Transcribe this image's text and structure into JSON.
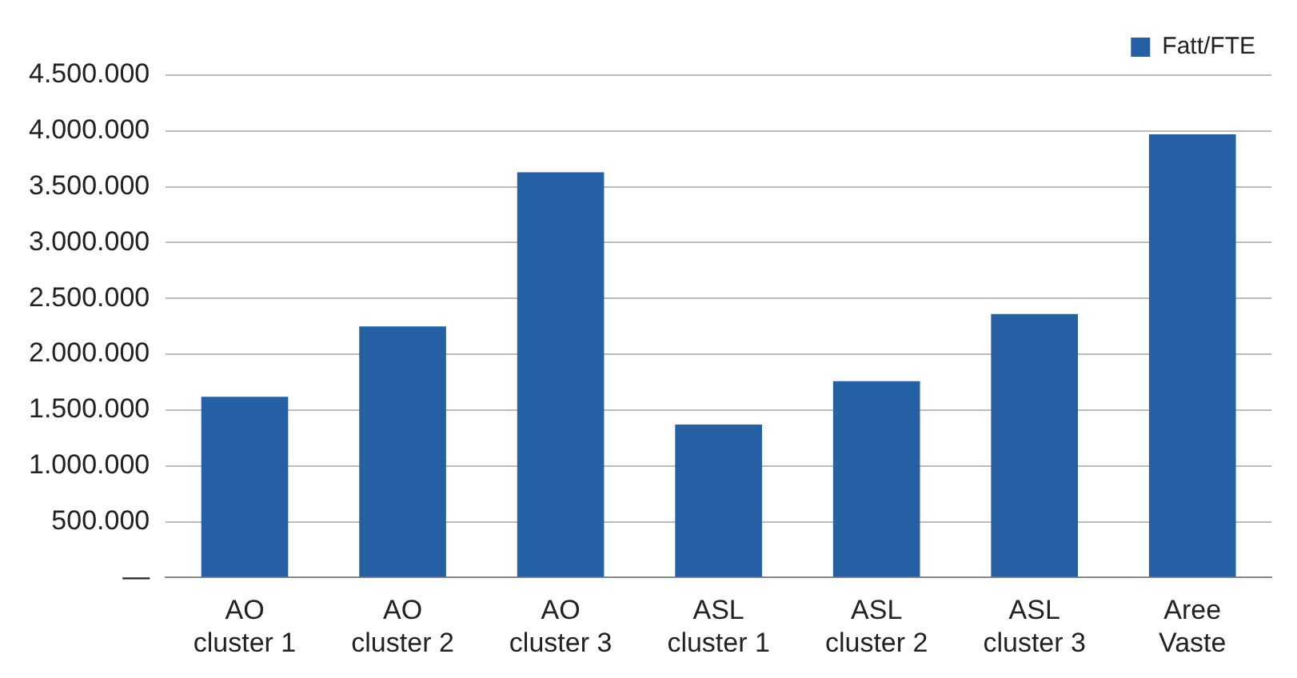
{
  "chart_data": {
    "type": "bar",
    "categories": [
      "AO cluster 1",
      "AO cluster 2",
      "AO cluster 3",
      "ASL cluster 1",
      "ASL cluster 2",
      "ASL cluster 3",
      "Aree Vaste"
    ],
    "series": [
      {
        "name": "Fatt/FTE",
        "color": "#2660a4",
        "values": [
          1620000,
          2250000,
          3630000,
          1370000,
          1760000,
          2360000,
          3970000
        ]
      }
    ],
    "ylim": [
      0,
      4500000
    ],
    "yticks": [
      {
        "value": 0,
        "label": "—"
      },
      {
        "value": 500000,
        "label": "500.000"
      },
      {
        "value": 1000000,
        "label": "1.000.000"
      },
      {
        "value": 1500000,
        "label": "1.500.000"
      },
      {
        "value": 2000000,
        "label": "2.000.000"
      },
      {
        "value": 2500000,
        "label": "2.500.000"
      },
      {
        "value": 3000000,
        "label": "3.000.000"
      },
      {
        "value": 3500000,
        "label": "3.500.000"
      },
      {
        "value": 4000000,
        "label": "4.000.000"
      },
      {
        "value": 4500000,
        "label": "4.500.000"
      }
    ],
    "grid": "y",
    "legend": "top right"
  }
}
